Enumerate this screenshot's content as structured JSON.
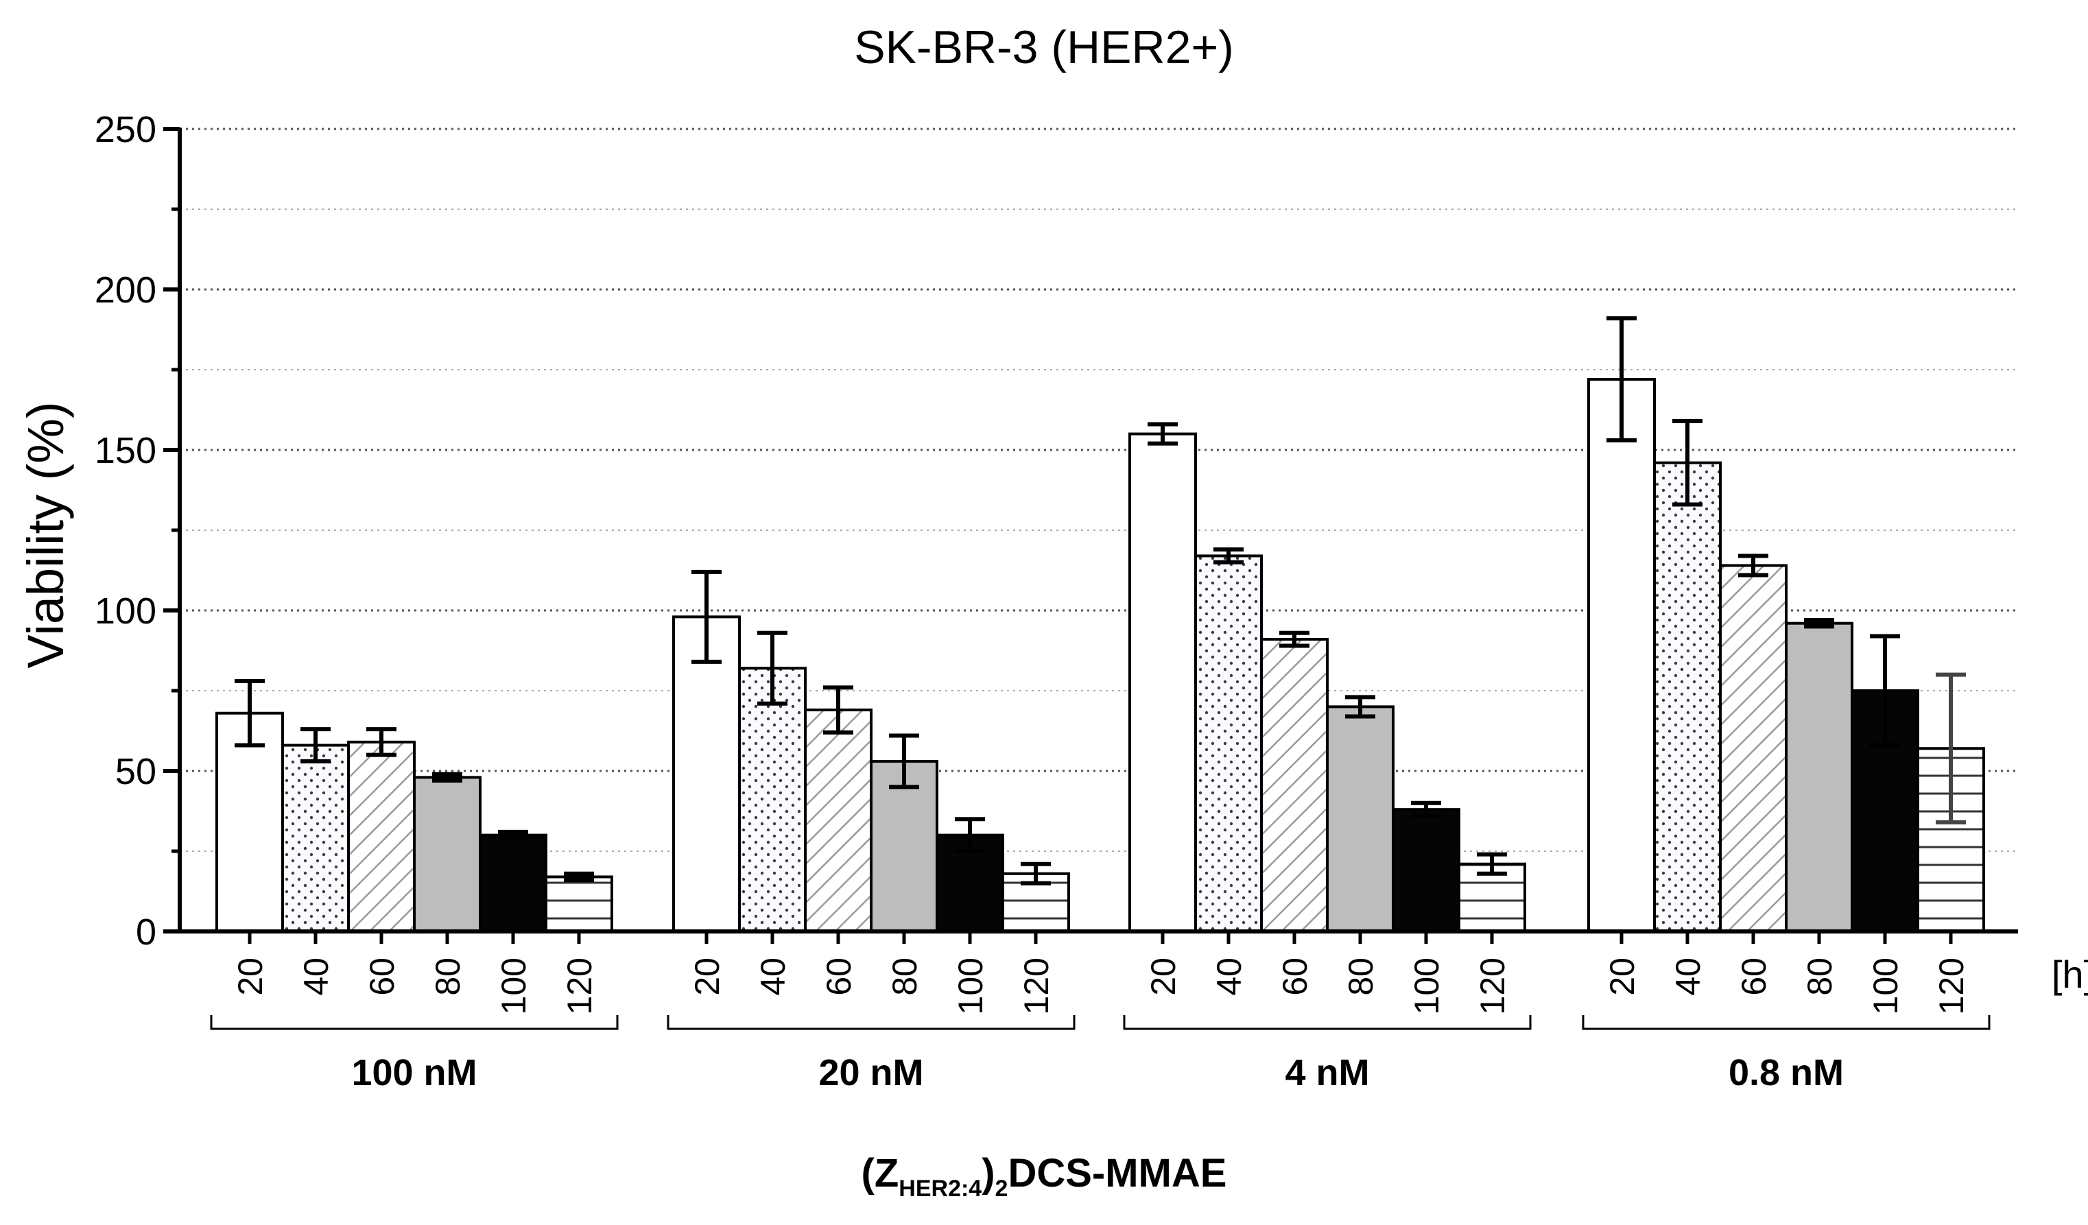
{
  "chart_data": {
    "type": "bar",
    "title": "SK-BR-3 (HER2+)",
    "ylabel": "Viability (%)",
    "ylim": [
      0,
      250
    ],
    "yticks": [
      0,
      50,
      100,
      150,
      200,
      250
    ],
    "grid": true,
    "x_unit_label": "[h]",
    "xlabel": {
      "prefix": "(Z",
      "sub1": "HER2:4",
      "mid": ")",
      "sub2": "2",
      "suffix": "DCS-MMAE"
    },
    "categories": [
      "20",
      "40",
      "60",
      "80",
      "100",
      "120"
    ],
    "series_patterns": [
      "white",
      "dots",
      "diagonal-hatch",
      "gray",
      "black",
      "horizontal-lines"
    ],
    "groups": [
      {
        "label": "100 nM",
        "values": [
          68,
          58,
          59,
          48,
          30,
          17
        ],
        "errors": [
          10,
          5,
          4,
          1,
          1,
          1
        ]
      },
      {
        "label": "20 nM",
        "values": [
          98,
          82,
          69,
          53,
          30,
          18
        ],
        "errors": [
          14,
          11,
          7,
          8,
          5,
          3
        ]
      },
      {
        "label": "4 nM",
        "values": [
          155,
          117,
          91,
          70,
          38,
          21
        ],
        "errors": [
          3,
          2,
          2,
          3,
          2,
          3
        ]
      },
      {
        "label": "0.8 nM",
        "values": [
          172,
          146,
          114,
          96,
          75,
          57
        ],
        "errors": [
          19,
          13,
          3,
          1,
          17,
          23
        ]
      }
    ]
  }
}
